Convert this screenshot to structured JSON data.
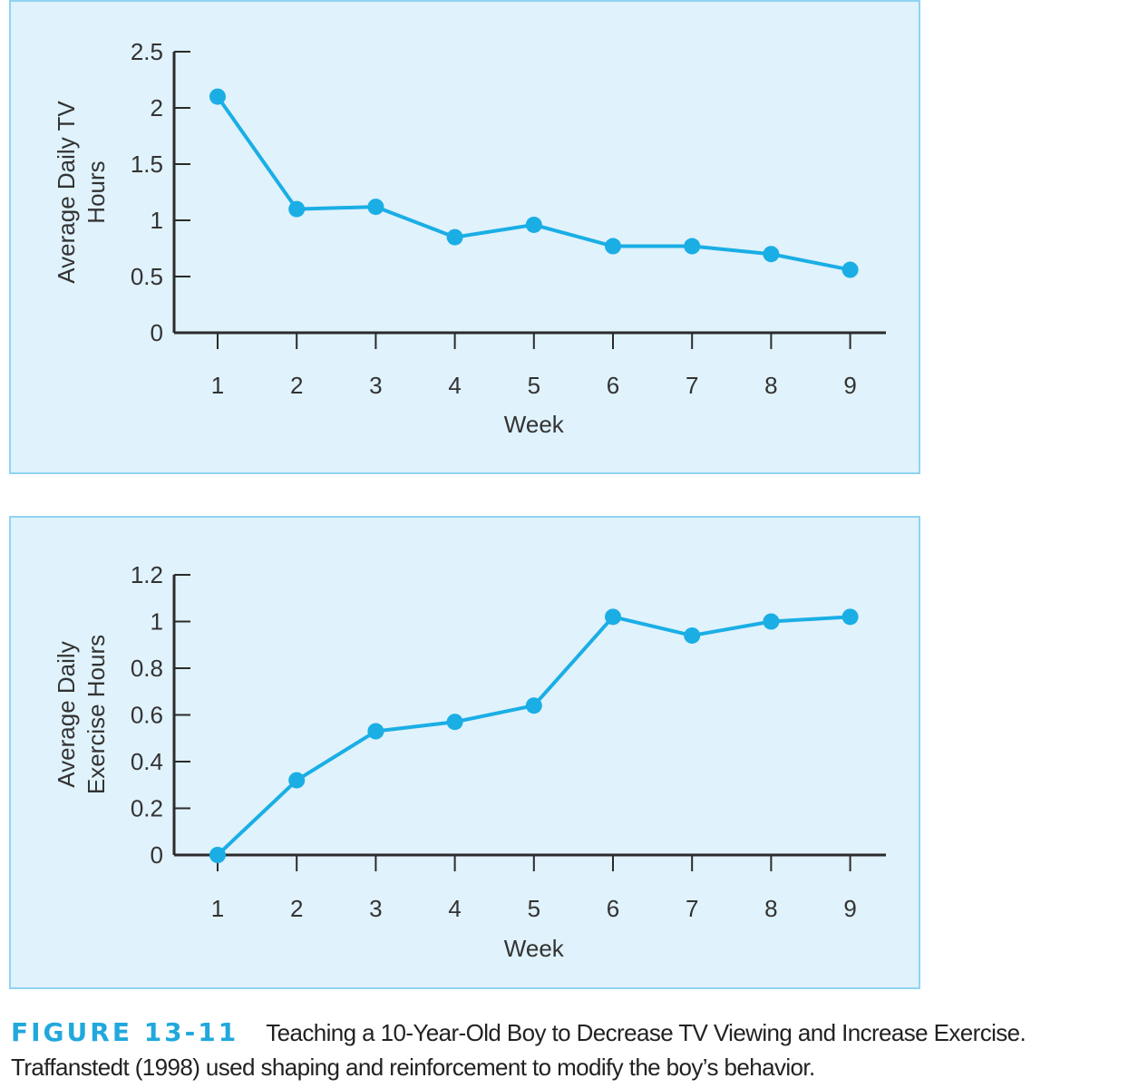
{
  "chart_data": [
    {
      "type": "line",
      "x": [
        1,
        2,
        3,
        4,
        5,
        6,
        7,
        8,
        9
      ],
      "values": [
        2.1,
        1.1,
        1.12,
        0.85,
        0.96,
        0.77,
        0.77,
        0.7,
        0.56
      ],
      "xlabel": "Week",
      "ylabel_lines": [
        "Average Daily TV",
        "Hours"
      ],
      "ylim": [
        0,
        2.5
      ],
      "yticks": [
        "0",
        "0.5",
        "1",
        "1.5",
        "2",
        "2.5"
      ],
      "xticks": [
        "1",
        "2",
        "3",
        "4",
        "5",
        "6",
        "7",
        "8",
        "9"
      ],
      "grid": false,
      "color": "#1aaee5"
    },
    {
      "type": "line",
      "x": [
        1,
        2,
        3,
        4,
        5,
        6,
        7,
        8,
        9
      ],
      "values": [
        0,
        0.32,
        0.53,
        0.57,
        0.64,
        1.02,
        0.94,
        1.0,
        1.02
      ],
      "xlabel": "Week",
      "ylabel_lines": [
        "Average Daily",
        "Exercise Hours"
      ],
      "ylim": [
        0,
        1.2
      ],
      "yticks": [
        "0",
        "0.2",
        "0.4",
        "0.6",
        "0.8",
        "1",
        "1.2"
      ],
      "xticks": [
        "1",
        "2",
        "3",
        "4",
        "5",
        "6",
        "7",
        "8",
        "9"
      ],
      "grid": false,
      "color": "#1aaee5"
    }
  ],
  "caption": {
    "figure_label": "FIGURE 13-11",
    "text": "Teaching a 10-Year-Old Boy to Decrease TV Viewing and Increase Exercise. Traffanstedt (1998) used shaping and reinforcement to modify the boy’s behavior."
  }
}
